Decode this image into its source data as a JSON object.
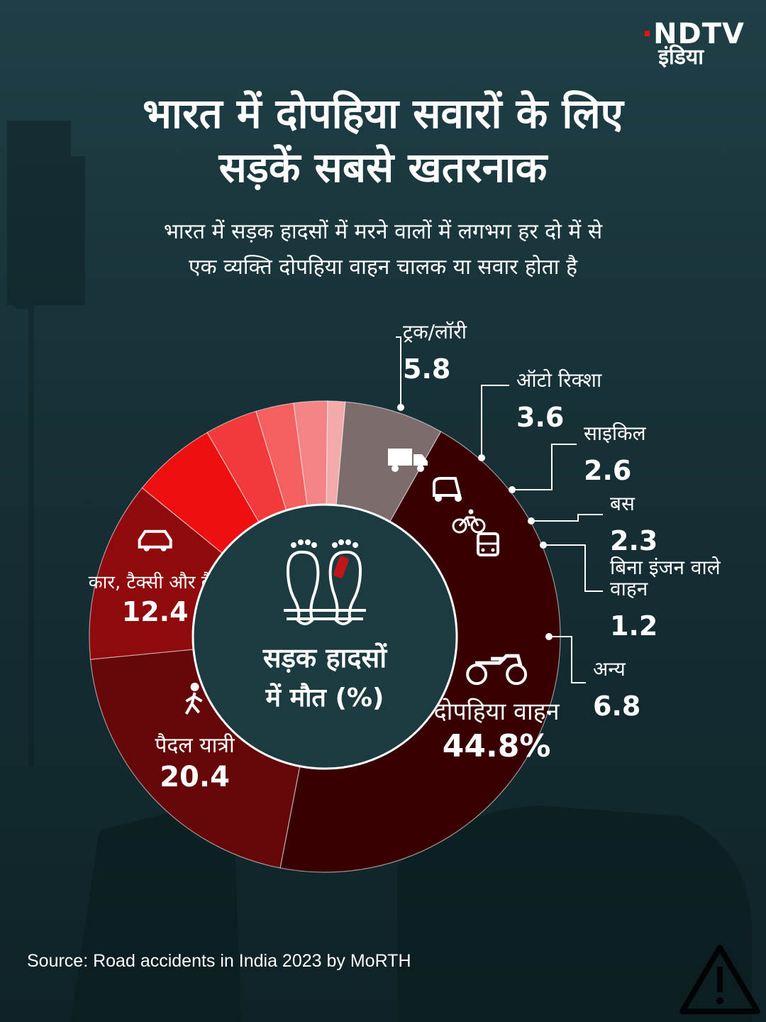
{
  "brand": {
    "line1": "NDTV",
    "line2": "इंडिया"
  },
  "title_line1": "भारत में दोपहिया सवारों के लिए",
  "title_line2": "सड़कें सबसे खतरनाक",
  "subtitle_line1": "भारत में सड़क हादसों में मरने वालों में लगभग हर दो में से",
  "subtitle_line2": "एक व्यक्ति दोपहिया वाहन चालक या सवार होता है",
  "center_label_line1": "सड़क हादसों",
  "center_label_line2": "में मौत (%)",
  "source": "Source: Road accidents in India 2023 by MoRTH",
  "chart_data": {
    "type": "pie",
    "variant": "donut",
    "unit": "%",
    "slices": [
      {
        "label": "दोपहिया वाहन",
        "value": 44.8,
        "value_text": "44.8%",
        "color": "#380000",
        "icon": "motorcycle-icon"
      },
      {
        "label": "पैदल यात्री",
        "value": 20.4,
        "value_text": "20.4",
        "color": "#650708",
        "icon": "pedestrian-icon"
      },
      {
        "label": "कार, टैक्सी और वैन",
        "value": 12.4,
        "value_text": "12.4",
        "color": "#8e0a0c",
        "icon": "car-icon"
      },
      {
        "label": "ट्रक/लॉरी",
        "value": 5.8,
        "value_text": "5.8",
        "color": "#ee0f10",
        "icon": "truck-icon"
      },
      {
        "label": "ऑटो रिक्शा",
        "value": 3.6,
        "value_text": "3.6",
        "color": "#f23a3c",
        "icon": "auto-rickshaw-icon"
      },
      {
        "label": "साइकिल",
        "value": 2.6,
        "value_text": "2.6",
        "color": "#f45f60",
        "icon": "bicycle-icon"
      },
      {
        "label": "बस",
        "value": 2.3,
        "value_text": "2.3",
        "color": "#f38385",
        "icon": "bus-icon"
      },
      {
        "label": "बिना इंजन वाले वाहन",
        "value": 1.2,
        "value_text": "1.2",
        "color": "#f4aaaa",
        "icon": ""
      },
      {
        "label": "अन्य",
        "value": 6.8,
        "value_text": "6.8",
        "color": "#7c6c6c",
        "icon": ""
      }
    ]
  }
}
